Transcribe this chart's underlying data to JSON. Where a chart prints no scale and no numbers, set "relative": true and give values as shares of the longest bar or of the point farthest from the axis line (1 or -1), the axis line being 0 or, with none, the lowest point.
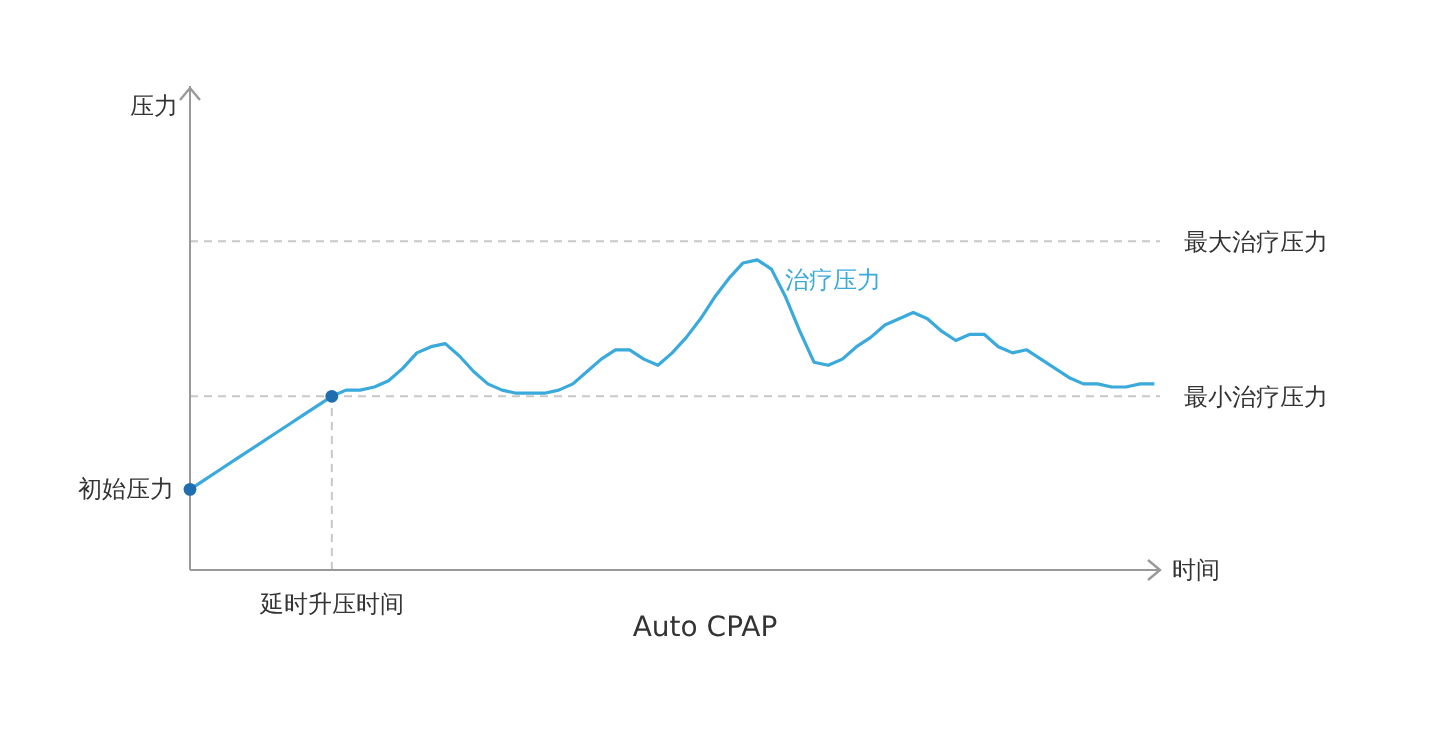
{
  "chart_data": {
    "type": "line",
    "relative": true,
    "title": "Auto CPAP",
    "xlabel": "时间",
    "categories": [
      null,
      null,
      null,
      null,
      null,
      null,
      null,
      null,
      null,
      null,
      null,
      null,
      null,
      null,
      null,
      null,
      null,
      null,
      null,
      null,
      null,
      null,
      null,
      null,
      null,
      null,
      null,
      null,
      null,
      null,
      null,
      null,
      null,
      null,
      null,
      null,
      null,
      null,
      null,
      null,
      null,
      null,
      null,
      null,
      null,
      null,
      null,
      null,
      null,
      null,
      null,
      null,
      null,
      null,
      null,
      null,
      null,
      null,
      null,
      null,
      null,
      null,
      null,
      null,
      null,
      null,
      null,
      null,
      null
    ],
    "series": [
      {
        "name": "治疗压力",
        "color": "#3aa9dc",
        "values": [
          0.26,
          0.29,
          0.32,
          0.35,
          0.38,
          0.41,
          0.44,
          0.47,
          0.5,
          0.53,
          0.56,
          0.58,
          0.58,
          0.59,
          0.61,
          0.65,
          0.7,
          0.72,
          0.73,
          0.69,
          0.64,
          0.6,
          0.58,
          0.57,
          0.57,
          0.57,
          0.58,
          0.6,
          0.64,
          0.68,
          0.71,
          0.71,
          0.68,
          0.66,
          0.7,
          0.75,
          0.81,
          0.88,
          0.94,
          0.99,
          1.0,
          0.97,
          0.88,
          0.77,
          0.67,
          0.66,
          0.68,
          0.72,
          0.75,
          0.79,
          0.81,
          0.83,
          0.81,
          0.77,
          0.74,
          0.76,
          0.76,
          0.72,
          0.7,
          0.71,
          0.68,
          0.65,
          0.62,
          0.6,
          0.6,
          0.59,
          0.59,
          0.6,
          0.6
        ]
      }
    ],
    "ref_lines": [
      {
        "axis": "y",
        "value": 1.06,
        "label": "最大治疗压力",
        "color": "#c8c8c8",
        "line_style": "dashed"
      },
      {
        "axis": "y",
        "value": 0.56,
        "label": "最小治疗压力",
        "color": "#c8c8c8",
        "line_style": "dashed"
      }
    ],
    "annotations": [
      "初始压力",
      "延时升压时间",
      "压力"
    ]
  }
}
